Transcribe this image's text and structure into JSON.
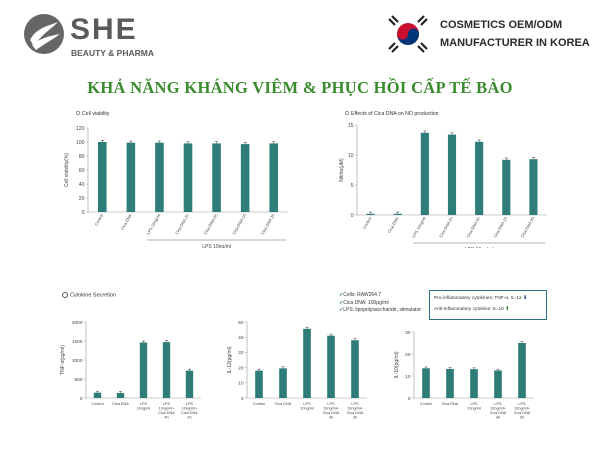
{
  "header": {
    "brand_name": "SHE",
    "brand_sub": "BEAUTY & PHARMA",
    "maker_line1": "COSMETICS OEM/ODM",
    "maker_line2": "MANUFACTURER IN KOREA",
    "title": "KHẢ NĂNG KHÁNG VIÊM & PHỤC HỒI CẤP TẾ BÀO"
  },
  "colors": {
    "bar": "#2e7d78",
    "title": "#3a8a2e",
    "axis": "#999999"
  },
  "cytokine_title": "Cytokine Secretion",
  "notes": {
    "cells": "Cells: RAW264.7",
    "cica": "Cica DNA: 100μg/ml",
    "lps": "LPS: lipopolysaccharide, stimulator"
  },
  "legend_box": {
    "pro": "Pro-inflammatory cytokines: TNF-α, IL-12",
    "anti": "Anti-inflammatory cytokine: IL-10"
  },
  "chart_data": [
    {
      "type": "bar",
      "title": "Cell viability",
      "ylabel": "Cell viability(%)",
      "xlabel": "LPS 10ng/ml",
      "ylim": [
        0,
        120
      ],
      "yticks": [
        0,
        20,
        40,
        60,
        80,
        100,
        120
      ],
      "categories": [
        "Control",
        "Cica DNA",
        "LPS 10ng/ml",
        "Cica DNA 2h",
        "Cica DNA 5h",
        "Cica DNA 10",
        "Cica DNA 20"
      ],
      "values": [
        100,
        99,
        99,
        98,
        98,
        97,
        98
      ],
      "error_bars": true
    },
    {
      "type": "bar",
      "title": "Effects of Cica DNA on NO production",
      "ylabel": "Nitrite(μM)",
      "xlabel": "LPS 10ng/ml",
      "ylim": [
        0,
        15
      ],
      "yticks": [
        0,
        5,
        10,
        15
      ],
      "categories": [
        "Control",
        "Cica DNA",
        "LPS 10ng/ml",
        "Cica DNA 2h",
        "Cica DNA 5h",
        "Cica DNA 10",
        "Cica DNA 20"
      ],
      "values": [
        0.2,
        0.2,
        13.7,
        13.4,
        12.2,
        9.2,
        9.3
      ],
      "error_bars": true
    },
    {
      "type": "bar",
      "title": "",
      "ylabel": "TNF-α(pg/ml)",
      "xlabel": "",
      "ylim": [
        0,
        2000
      ],
      "yticks": [
        0,
        500,
        1000,
        1500,
        2000
      ],
      "categories": [
        "Control",
        "Cica DNA",
        "LPS 10ng/ml",
        "LPS 10ng/ml+ Cica DNA 4h",
        "LPS 10ng/ml+ Cica DNA 2h"
      ],
      "values": [
        140,
        130,
        1460,
        1470,
        720
      ],
      "error_bars": true
    },
    {
      "type": "bar",
      "title": "",
      "ylabel": "IL-12(pg/ml)",
      "xlabel": "",
      "ylim": [
        0,
        50
      ],
      "yticks": [
        0,
        10,
        20,
        30,
        40,
        50
      ],
      "categories": [
        "Control",
        "Cica DNA",
        "LPS 10ng/ml",
        "LPS 10ng/ml+ Cica DNA 4h",
        "LPS 10ng/ml+ Cica DNA 2h"
      ],
      "values": [
        18,
        19.5,
        45.5,
        41,
        38
      ],
      "error_bars": true
    },
    {
      "type": "bar",
      "title": "",
      "ylabel": "IL-10(pg/ml)",
      "xlabel": "",
      "ylim": [
        0,
        30
      ],
      "yticks": [
        0,
        10,
        20,
        30
      ],
      "categories": [
        "Control",
        "Cica DNA",
        "LPS 10ng/ml",
        "LPS 10ng/ml+ Cica DNA 4h",
        "LPS 10ng/ml+ Cica DNA 2h"
      ],
      "values": [
        13.5,
        13.2,
        13.1,
        12.5,
        25
      ],
      "error_bars": true
    }
  ]
}
